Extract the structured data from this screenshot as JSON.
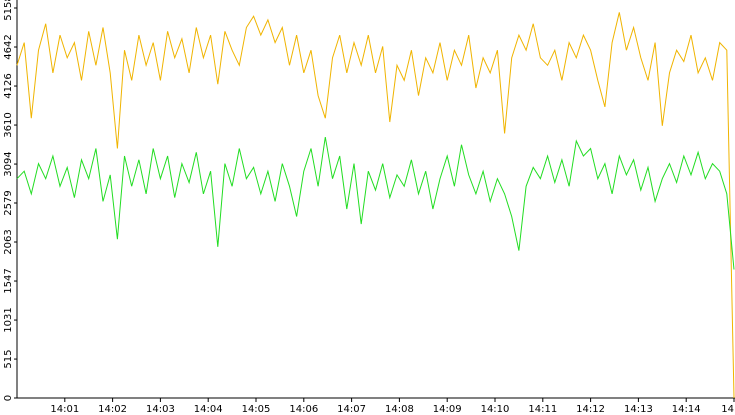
{
  "chart_data": {
    "type": "line",
    "x": [
      0,
      0.15,
      0.3,
      0.45,
      0.6,
      0.75,
      0.9,
      1.05,
      1.2,
      1.35,
      1.5,
      1.65,
      1.8,
      1.95,
      2.1,
      2.25,
      2.4,
      2.55,
      2.7,
      2.85,
      3,
      3.15,
      3.3,
      3.45,
      3.6,
      3.75,
      3.9,
      4.05,
      4.2,
      4.35,
      4.5,
      4.65,
      4.8,
      4.95,
      5.1,
      5.25,
      5.4,
      5.55,
      5.7,
      5.85,
      6,
      6.15,
      6.3,
      6.45,
      6.6,
      6.75,
      6.9,
      7.05,
      7.2,
      7.35,
      7.5,
      7.65,
      7.8,
      7.95,
      8.1,
      8.25,
      8.4,
      8.55,
      8.7,
      8.85,
      9,
      9.15,
      9.3,
      9.45,
      9.6,
      9.75,
      9.9,
      10.05,
      10.2,
      10.35,
      10.5,
      10.65,
      10.8,
      10.95,
      11.1,
      11.25,
      11.4,
      11.55,
      11.7,
      11.85,
      12,
      12.15,
      12.3,
      12.45,
      12.6,
      12.75,
      12.9,
      13.05,
      13.2,
      13.35,
      13.5,
      13.65,
      13.8,
      13.95,
      14.1,
      14.25,
      14.4,
      14.55,
      14.7,
      14.85,
      15
    ],
    "series": [
      {
        "color": "#f0b400",
        "values": [
          4400,
          4700,
          3700,
          4600,
          4950,
          4300,
          4800,
          4500,
          4700,
          4200,
          4850,
          4400,
          4900,
          4300,
          3300,
          4600,
          4200,
          4800,
          4400,
          4700,
          4200,
          4850,
          4500,
          4750,
          4300,
          4900,
          4500,
          4800,
          4150,
          4850,
          4600,
          4400,
          4900,
          5050,
          4800,
          5000,
          4700,
          4900,
          4400,
          4800,
          4300,
          4600,
          4000,
          3700,
          4500,
          4800,
          4300,
          4700,
          4400,
          4800,
          4300,
          4650,
          3650,
          4400,
          4200,
          4600,
          4000,
          4500,
          4300,
          4700,
          4200,
          4600,
          4400,
          4800,
          4100,
          4500,
          4300,
          4600,
          3500,
          4500,
          4800,
          4600,
          4950,
          4500,
          4400,
          4600,
          4200,
          4700,
          4500,
          4800,
          4600,
          4200,
          3850,
          4700,
          5100,
          4600,
          4900,
          4500,
          4200,
          4700,
          3600,
          4300,
          4600,
          4450,
          4800,
          4300,
          4500,
          4200,
          4700,
          4600,
          0
        ]
      },
      {
        "color": "#22dd22",
        "values": [
          2900,
          3000,
          2700,
          3100,
          2900,
          3200,
          2800,
          3050,
          2650,
          3150,
          2900,
          3300,
          2600,
          2950,
          2100,
          3200,
          2800,
          3150,
          2700,
          3300,
          2900,
          3200,
          2650,
          3100,
          2850,
          3250,
          2700,
          3000,
          2000,
          3100,
          2800,
          3300,
          2900,
          3050,
          2700,
          3000,
          2600,
          3100,
          2800,
          2400,
          3000,
          3300,
          2800,
          3450,
          2900,
          3200,
          2500,
          3100,
          2300,
          3000,
          2750,
          3100,
          2650,
          2950,
          2800,
          3150,
          2700,
          3000,
          2500,
          2900,
          3200,
          2800,
          3350,
          2950,
          2700,
          3000,
          2600,
          2900,
          2700,
          2400,
          1950,
          2800,
          3050,
          2900,
          3200,
          2850,
          3150,
          2800,
          3400,
          3200,
          3300,
          2900,
          3100,
          2700,
          3200,
          2950,
          3150,
          2750,
          3050,
          2600,
          2900,
          3100,
          2850,
          3200,
          2950,
          3250,
          2900,
          3100,
          3000,
          2700,
          1700
        ]
      }
    ],
    "xlim": [
      0,
      15
    ],
    "xticks": [
      {
        "value": 1,
        "label": "14:01"
      },
      {
        "value": 2,
        "label": "14:02"
      },
      {
        "value": 3,
        "label": "14:03"
      },
      {
        "value": 4,
        "label": "14:04"
      },
      {
        "value": 5,
        "label": "14:05"
      },
      {
        "value": 6,
        "label": "14:06"
      },
      {
        "value": 7,
        "label": "14:07"
      },
      {
        "value": 8,
        "label": "14:08"
      },
      {
        "value": 9,
        "label": "14:09"
      },
      {
        "value": 10,
        "label": "14:10"
      },
      {
        "value": 11,
        "label": "14:11"
      },
      {
        "value": 12,
        "label": "14:12"
      },
      {
        "value": 13,
        "label": "14:13"
      },
      {
        "value": 14,
        "label": "14:14"
      },
      {
        "value": 15,
        "label": "14"
      }
    ],
    "ylim": [
      0,
      5158
    ],
    "yticks": [
      0,
      515,
      1031,
      1547,
      2063,
      2579,
      3094,
      3610,
      4126,
      4642,
      5158
    ]
  }
}
